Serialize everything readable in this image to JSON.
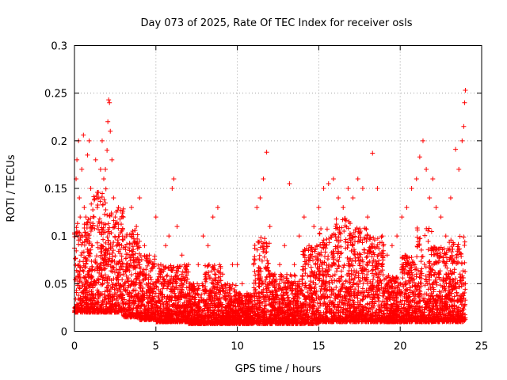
{
  "chart_data": {
    "type": "scatter",
    "title": "Day 073 of 2025, Rate Of TEC Index for receiver osls",
    "xlabel": "GPS time / hours",
    "ylabel": "ROTI / TECUs",
    "xlim": [
      0,
      25
    ],
    "ylim": [
      0,
      0.3
    ],
    "x_ticks": [
      0,
      5,
      10,
      15,
      20,
      25
    ],
    "x_tick_labels": [
      "0",
      "5",
      "10",
      "15",
      "20",
      "25"
    ],
    "y_ticks": [
      0,
      0.05,
      0.1,
      0.15,
      0.2,
      0.25,
      0.3
    ],
    "y_tick_labels": [
      "0",
      "0.05",
      "0.1",
      "0.15",
      "0.2",
      "0.25",
      "0.3"
    ],
    "grid": true,
    "marker": "+",
    "color": "#ff0000",
    "series": [
      {
        "points": [
          [
            0.05,
            0.025
          ],
          [
            0.1,
            0.16
          ],
          [
            0.15,
            0.18
          ],
          [
            0.2,
            0.1
          ],
          [
            0.25,
            0.2
          ],
          [
            0.3,
            0.14
          ],
          [
            0.35,
            0.12
          ],
          [
            0.4,
            0.08
          ],
          [
            0.45,
            0.17
          ],
          [
            0.5,
            0.1
          ],
          [
            0.55,
            0.206
          ],
          [
            0.6,
            0.13
          ],
          [
            0.7,
            0.12
          ],
          [
            0.8,
            0.185
          ],
          [
            0.9,
            0.2
          ],
          [
            1.0,
            0.15
          ],
          [
            1.1,
            0.09
          ],
          [
            1.2,
            0.12
          ],
          [
            1.3,
            0.18
          ],
          [
            1.4,
            0.13
          ],
          [
            1.5,
            0.14
          ],
          [
            1.6,
            0.17
          ],
          [
            1.7,
            0.2
          ],
          [
            1.8,
            0.16
          ],
          [
            1.9,
            0.17
          ],
          [
            2.0,
            0.19
          ],
          [
            2.05,
            0.22
          ],
          [
            2.1,
            0.243
          ],
          [
            2.15,
            0.24
          ],
          [
            2.2,
            0.21
          ],
          [
            2.3,
            0.18
          ],
          [
            2.4,
            0.14
          ],
          [
            2.5,
            0.12
          ],
          [
            2.7,
            0.13
          ],
          [
            3.0,
            0.12
          ],
          [
            3.2,
            0.1
          ],
          [
            3.5,
            0.13
          ],
          [
            3.8,
            0.11
          ],
          [
            4.0,
            0.14
          ],
          [
            4.3,
            0.09
          ],
          [
            4.6,
            0.08
          ],
          [
            5.0,
            0.12
          ],
          [
            5.3,
            0.07
          ],
          [
            5.6,
            0.09
          ],
          [
            5.8,
            0.1
          ],
          [
            6.0,
            0.15
          ],
          [
            6.1,
            0.16
          ],
          [
            6.3,
            0.11
          ],
          [
            6.6,
            0.08
          ],
          [
            7.0,
            0.07
          ],
          [
            7.3,
            0.05
          ],
          [
            7.6,
            0.07
          ],
          [
            7.9,
            0.1
          ],
          [
            8.2,
            0.09
          ],
          [
            8.5,
            0.12
          ],
          [
            8.8,
            0.13
          ],
          [
            9.1,
            0.06
          ],
          [
            9.4,
            0.05
          ],
          [
            9.7,
            0.07
          ],
          [
            10.0,
            0.07
          ],
          [
            10.3,
            0.05
          ],
          [
            10.6,
            0.04
          ],
          [
            11.0,
            0.07
          ],
          [
            11.2,
            0.13
          ],
          [
            11.4,
            0.14
          ],
          [
            11.6,
            0.16
          ],
          [
            11.8,
            0.188
          ],
          [
            12.0,
            0.11
          ],
          [
            12.3,
            0.06
          ],
          [
            12.6,
            0.07
          ],
          [
            12.9,
            0.09
          ],
          [
            13.2,
            0.155
          ],
          [
            13.5,
            0.07
          ],
          [
            13.8,
            0.1
          ],
          [
            14.1,
            0.12
          ],
          [
            14.4,
            0.09
          ],
          [
            14.7,
            0.11
          ],
          [
            15.0,
            0.13
          ],
          [
            15.3,
            0.15
          ],
          [
            15.6,
            0.155
          ],
          [
            15.9,
            0.16
          ],
          [
            16.2,
            0.14
          ],
          [
            16.5,
            0.13
          ],
          [
            16.8,
            0.15
          ],
          [
            17.1,
            0.14
          ],
          [
            17.4,
            0.16
          ],
          [
            17.7,
            0.15
          ],
          [
            18.0,
            0.12
          ],
          [
            18.3,
            0.187
          ],
          [
            18.6,
            0.15
          ],
          [
            18.9,
            0.1
          ],
          [
            19.2,
            0.08
          ],
          [
            19.5,
            0.09
          ],
          [
            19.8,
            0.1
          ],
          [
            20.1,
            0.12
          ],
          [
            20.4,
            0.13
          ],
          [
            20.7,
            0.15
          ],
          [
            21.0,
            0.16
          ],
          [
            21.2,
            0.183
          ],
          [
            21.4,
            0.2
          ],
          [
            21.6,
            0.17
          ],
          [
            21.8,
            0.14
          ],
          [
            22.0,
            0.16
          ],
          [
            22.2,
            0.13
          ],
          [
            22.5,
            0.12
          ],
          [
            22.8,
            0.1
          ],
          [
            23.1,
            0.14
          ],
          [
            23.4,
            0.191
          ],
          [
            23.6,
            0.17
          ],
          [
            23.8,
            0.2
          ],
          [
            23.9,
            0.215
          ],
          [
            23.95,
            0.24
          ],
          [
            24.0,
            0.253
          ],
          [
            0.3,
            0.06
          ],
          [
            1.0,
            0.05
          ],
          [
            2.0,
            0.07
          ],
          [
            3.0,
            0.06
          ],
          [
            4.0,
            0.05
          ],
          [
            5.0,
            0.04
          ],
          [
            6.0,
            0.05
          ],
          [
            7.0,
            0.03
          ],
          [
            8.0,
            0.04
          ],
          [
            9.0,
            0.03
          ],
          [
            10.0,
            0.03
          ],
          [
            11.0,
            0.04
          ],
          [
            12.0,
            0.05
          ],
          [
            13.0,
            0.04
          ],
          [
            14.0,
            0.05
          ],
          [
            15.0,
            0.06
          ],
          [
            16.0,
            0.07
          ],
          [
            17.0,
            0.06
          ],
          [
            18.0,
            0.05
          ],
          [
            19.0,
            0.04
          ],
          [
            20.0,
            0.05
          ],
          [
            21.0,
            0.06
          ],
          [
            22.0,
            0.05
          ],
          [
            23.0,
            0.06
          ],
          [
            24.0,
            0.05
          ],
          [
            0.5,
            0.02
          ],
          [
            1.5,
            0.03
          ],
          [
            2.5,
            0.02
          ],
          [
            3.5,
            0.03
          ],
          [
            4.5,
            0.02
          ],
          [
            5.5,
            0.02
          ],
          [
            6.5,
            0.02
          ],
          [
            7.5,
            0.015
          ],
          [
            8.5,
            0.02
          ],
          [
            9.5,
            0.015
          ],
          [
            10.5,
            0.02
          ],
          [
            11.5,
            0.02
          ],
          [
            12.5,
            0.02
          ],
          [
            13.5,
            0.02
          ],
          [
            14.5,
            0.025
          ],
          [
            15.5,
            0.02
          ],
          [
            16.5,
            0.02
          ],
          [
            17.5,
            0.02
          ],
          [
            18.5,
            0.02
          ],
          [
            19.5,
            0.02
          ],
          [
            20.5,
            0.02
          ],
          [
            21.5,
            0.02
          ],
          [
            22.5,
            0.02
          ],
          [
            23.5,
            0.02
          ]
        ]
      }
    ],
    "band": {
      "segments": [
        [
          0.0,
          1.0,
          0.02,
          0.12
        ],
        [
          1.0,
          2.0,
          0.02,
          0.15
        ],
        [
          2.0,
          3.0,
          0.02,
          0.13
        ],
        [
          3.0,
          4.0,
          0.015,
          0.11
        ],
        [
          4.0,
          5.0,
          0.012,
          0.08
        ],
        [
          5.0,
          6.0,
          0.01,
          0.07
        ],
        [
          6.0,
          7.0,
          0.01,
          0.07
        ],
        [
          7.0,
          8.0,
          0.008,
          0.05
        ],
        [
          8.0,
          9.0,
          0.008,
          0.07
        ],
        [
          9.0,
          10.0,
          0.008,
          0.05
        ],
        [
          10.0,
          11.0,
          0.008,
          0.04
        ],
        [
          11.0,
          12.0,
          0.008,
          0.1
        ],
        [
          12.0,
          13.0,
          0.008,
          0.06
        ],
        [
          13.0,
          14.0,
          0.008,
          0.06
        ],
        [
          14.0,
          15.0,
          0.008,
          0.09
        ],
        [
          15.0,
          16.0,
          0.01,
          0.11
        ],
        [
          16.0,
          17.0,
          0.01,
          0.12
        ],
        [
          17.0,
          18.0,
          0.01,
          0.11
        ],
        [
          18.0,
          19.0,
          0.01,
          0.1
        ],
        [
          19.0,
          20.0,
          0.01,
          0.06
        ],
        [
          20.0,
          21.0,
          0.01,
          0.08
        ],
        [
          21.0,
          22.0,
          0.01,
          0.11
        ],
        [
          22.0,
          23.0,
          0.01,
          0.09
        ],
        [
          23.0,
          24.0,
          0.01,
          0.1
        ]
      ]
    }
  }
}
